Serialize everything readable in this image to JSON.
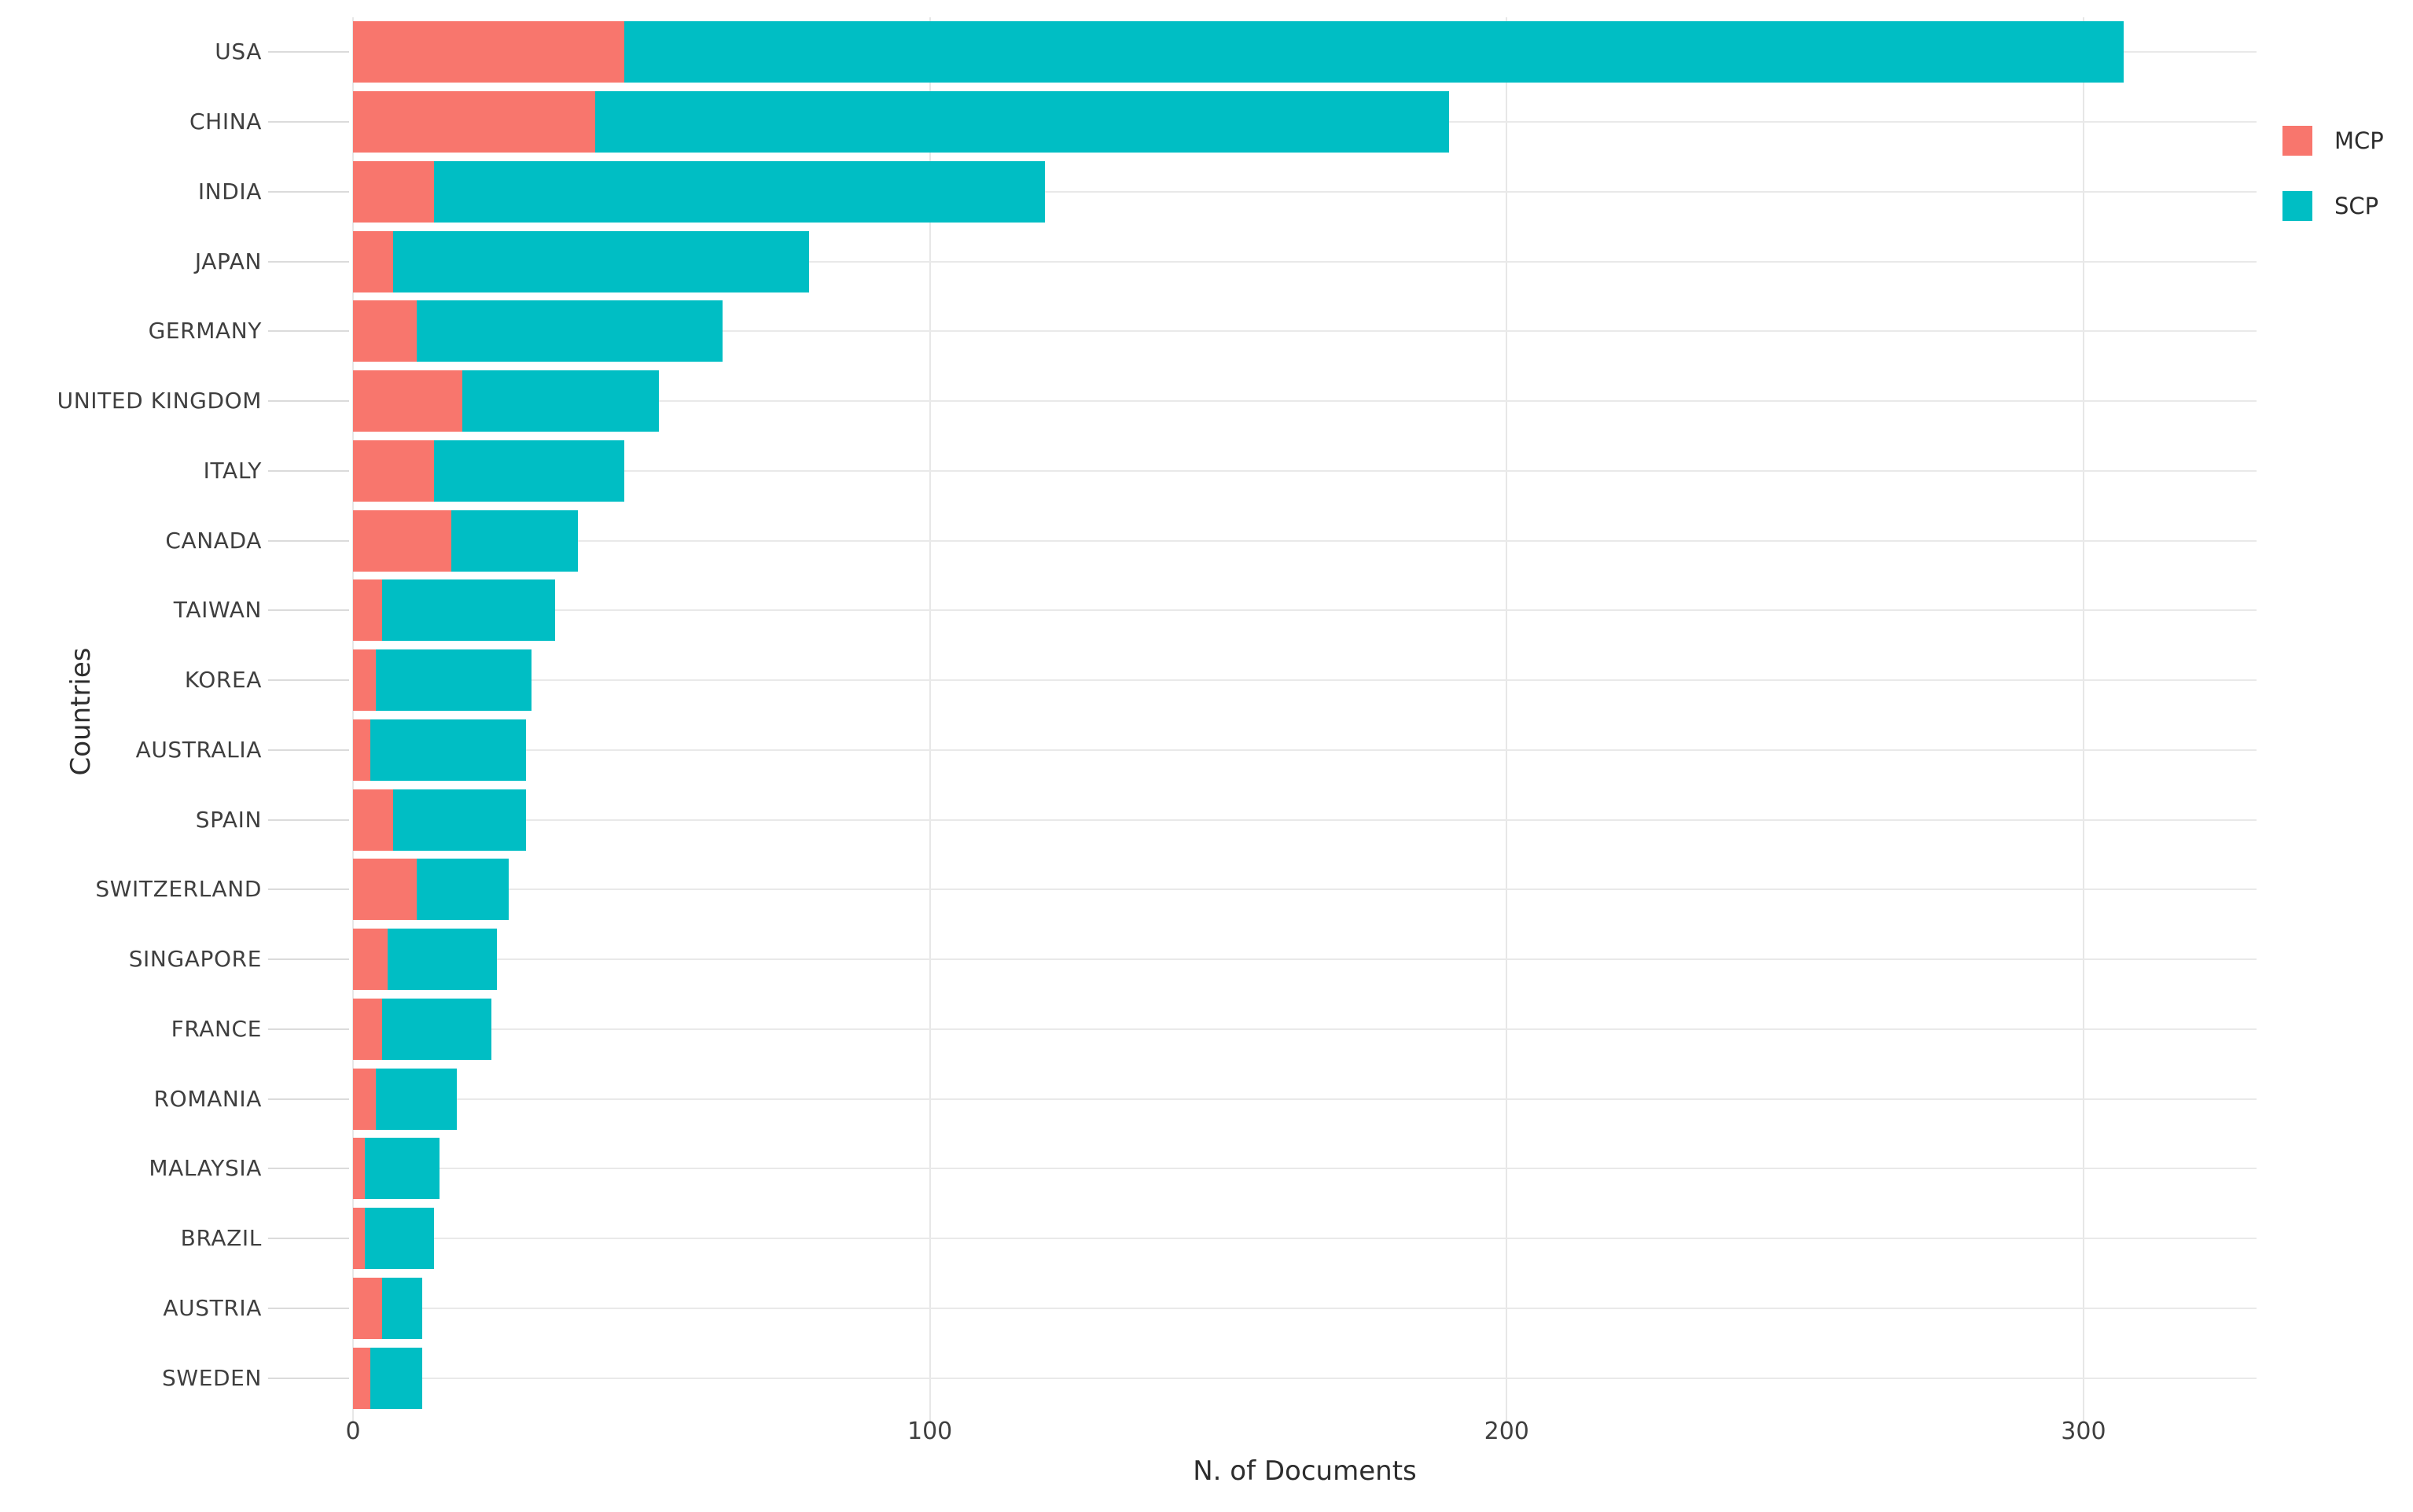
{
  "chart_data": {
    "type": "bar",
    "orientation": "horizontal",
    "stacked": true,
    "title": "",
    "xlabel": "N. of Documents",
    "ylabel": "Countries",
    "categories": [
      "USA",
      "CHINA",
      "INDIA",
      "JAPAN",
      "GERMANY",
      "UNITED KINGDOM",
      "ITALY",
      "CANADA",
      "TAIWAN",
      "KOREA",
      "AUSTRALIA",
      "SPAIN",
      "SWITZERLAND",
      "SINGAPORE",
      "FRANCE",
      "ROMANIA",
      "MALAYSIA",
      "BRAZIL",
      "AUSTRIA",
      "SWEDEN"
    ],
    "series": [
      {
        "name": "MCP",
        "color": "#F8766D",
        "values": [
          47,
          42,
          14,
          7,
          11,
          19,
          14,
          17,
          5,
          4,
          3,
          7,
          11,
          6,
          5,
          4,
          2,
          2,
          5,
          3
        ]
      },
      {
        "name": "SCP",
        "color": "#00BEC4",
        "values": [
          260,
          148,
          106,
          72,
          53,
          34,
          33,
          22,
          30,
          27,
          27,
          23,
          16,
          19,
          19,
          14,
          13,
          12,
          7,
          9
        ]
      }
    ],
    "totals": [
      307,
      190,
      120,
      79,
      64,
      53,
      47,
      39,
      35,
      31,
      30,
      30,
      27,
      25,
      24,
      18,
      15,
      14,
      12,
      12
    ],
    "x_ticks": [
      0,
      100,
      200,
      300
    ],
    "xlim": [
      0,
      330
    ],
    "grid": true,
    "gridline_color": "#e8e8e8",
    "text_color": "#3f3f3f",
    "background_color": "#ffffff",
    "legend_position": "right"
  }
}
